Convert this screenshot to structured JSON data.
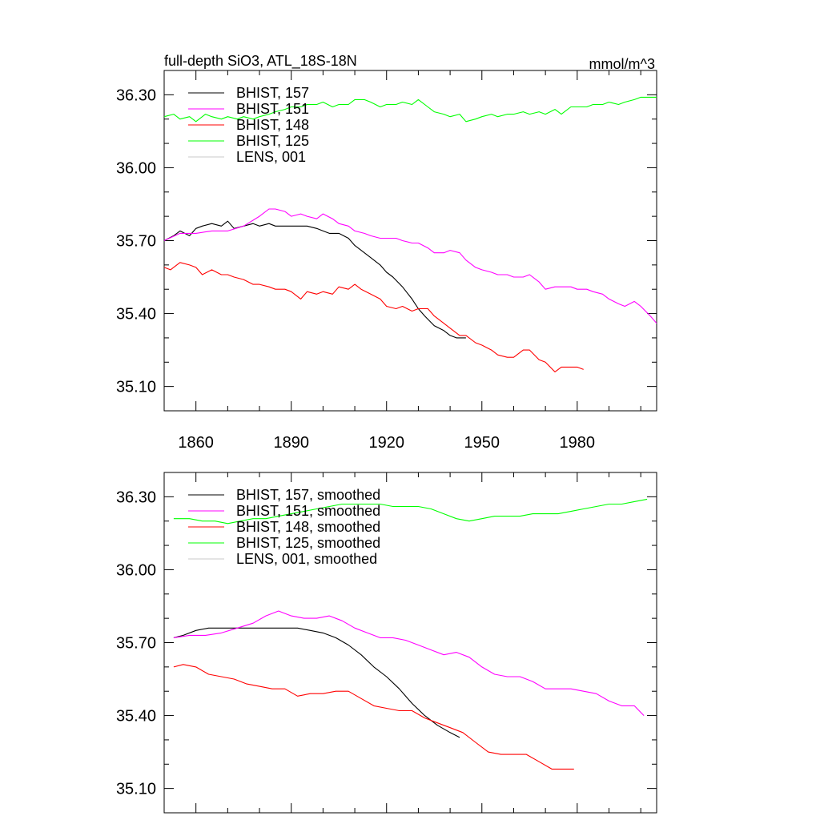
{
  "chart_data": [
    {
      "type": "line",
      "title": "full-depth SiO3, ATL_18S-18N",
      "units": "mmol/m^3",
      "xlim": [
        1850,
        2005
      ],
      "ylim": [
        35.0,
        36.4
      ],
      "x_ticks": [
        1860,
        1890,
        1920,
        1950,
        1980
      ],
      "y_ticks": [
        35.1,
        35.4,
        35.7,
        36.0,
        36.3
      ],
      "y_tick_labels": [
        "35.10",
        "35.40",
        "35.70",
        "36.00",
        "36.30"
      ],
      "x_tick_labels": [
        "1860",
        "1890",
        "1920",
        "1950",
        "1980"
      ],
      "grid": false,
      "legend_position": "top-left",
      "series": [
        {
          "name": "BHIST, 157",
          "color": "#000000",
          "x": [
            1850,
            1853,
            1855,
            1858,
            1860,
            1862,
            1865,
            1868,
            1870,
            1872,
            1875,
            1878,
            1880,
            1883,
            1885,
            1888,
            1890,
            1893,
            1895,
            1898,
            1900,
            1902,
            1905,
            1908,
            1910,
            1912,
            1915,
            1918,
            1920,
            1922,
            1925,
            1928,
            1930,
            1932,
            1935,
            1938,
            1940,
            1942,
            1945
          ],
          "y": [
            35.7,
            35.72,
            35.74,
            35.72,
            35.75,
            35.76,
            35.77,
            35.76,
            35.78,
            35.75,
            35.76,
            35.77,
            35.76,
            35.77,
            35.76,
            35.76,
            35.76,
            35.76,
            35.76,
            35.75,
            35.74,
            35.73,
            35.73,
            35.71,
            35.68,
            35.66,
            35.63,
            35.6,
            35.57,
            35.55,
            35.51,
            35.46,
            35.42,
            35.39,
            35.35,
            35.33,
            35.31,
            35.3,
            35.3
          ]
        },
        {
          "name": "BHIST, 151",
          "color": "#ff00ff",
          "x": [
            1850,
            1855,
            1860,
            1865,
            1870,
            1875,
            1880,
            1883,
            1885,
            1888,
            1890,
            1893,
            1895,
            1898,
            1900,
            1903,
            1905,
            1908,
            1910,
            1913,
            1915,
            1918,
            1920,
            1923,
            1925,
            1928,
            1930,
            1933,
            1935,
            1938,
            1940,
            1943,
            1945,
            1948,
            1950,
            1953,
            1955,
            1958,
            1960,
            1963,
            1965,
            1968,
            1970,
            1973,
            1975,
            1978,
            1980,
            1983,
            1985,
            1988,
            1990,
            1993,
            1995,
            1998,
            2000,
            2003,
            2005
          ],
          "y": [
            35.7,
            35.73,
            35.73,
            35.74,
            35.74,
            35.76,
            35.8,
            35.83,
            35.83,
            35.82,
            35.8,
            35.81,
            35.8,
            35.79,
            35.81,
            35.79,
            35.77,
            35.76,
            35.74,
            35.73,
            35.72,
            35.71,
            35.71,
            35.71,
            35.7,
            35.69,
            35.69,
            35.67,
            35.65,
            35.65,
            35.66,
            35.65,
            35.62,
            35.59,
            35.58,
            35.57,
            35.56,
            35.56,
            35.55,
            35.55,
            35.56,
            35.53,
            35.5,
            35.51,
            35.51,
            35.51,
            35.5,
            35.5,
            35.49,
            35.48,
            35.46,
            35.44,
            35.43,
            35.45,
            35.43,
            35.39,
            35.36
          ]
        },
        {
          "name": "BHIST, 148",
          "color": "#ff0000",
          "x": [
            1850,
            1852,
            1855,
            1858,
            1860,
            1862,
            1865,
            1868,
            1870,
            1872,
            1875,
            1878,
            1880,
            1883,
            1885,
            1888,
            1890,
            1893,
            1895,
            1898,
            1900,
            1903,
            1905,
            1908,
            1910,
            1912,
            1915,
            1918,
            1920,
            1923,
            1925,
            1928,
            1930,
            1933,
            1935,
            1938,
            1940,
            1943,
            1945,
            1948,
            1950,
            1953,
            1955,
            1958,
            1960,
            1963,
            1965,
            1968,
            1970,
            1973,
            1975,
            1978,
            1980,
            1982
          ],
          "y": [
            35.59,
            35.58,
            35.61,
            35.6,
            35.59,
            35.56,
            35.58,
            35.56,
            35.56,
            35.55,
            35.54,
            35.52,
            35.52,
            35.51,
            35.5,
            35.5,
            35.49,
            35.46,
            35.49,
            35.48,
            35.49,
            35.48,
            35.51,
            35.5,
            35.52,
            35.5,
            35.48,
            35.46,
            35.43,
            35.42,
            35.43,
            35.41,
            35.42,
            35.42,
            35.39,
            35.36,
            35.34,
            35.31,
            35.31,
            35.28,
            35.27,
            35.25,
            35.23,
            35.22,
            35.22,
            35.25,
            35.25,
            35.21,
            35.2,
            35.16,
            35.18,
            35.18,
            35.18,
            35.17
          ]
        },
        {
          "name": "BHIST, 125",
          "color": "#00ff00",
          "x": [
            1850,
            1853,
            1855,
            1858,
            1860,
            1863,
            1865,
            1868,
            1870,
            1873,
            1875,
            1878,
            1880,
            1883,
            1885,
            1888,
            1890,
            1893,
            1895,
            1898,
            1900,
            1903,
            1905,
            1908,
            1910,
            1913,
            1915,
            1918,
            1920,
            1923,
            1925,
            1928,
            1930,
            1933,
            1935,
            1938,
            1940,
            1943,
            1945,
            1948,
            1950,
            1953,
            1955,
            1958,
            1960,
            1963,
            1965,
            1968,
            1970,
            1973,
            1975,
            1978,
            1980,
            1983,
            1985,
            1988,
            1990,
            1993,
            1995,
            1998,
            2000,
            2003,
            2005
          ],
          "y": [
            36.21,
            36.22,
            36.2,
            36.21,
            36.19,
            36.22,
            36.21,
            36.2,
            36.21,
            36.2,
            36.21,
            36.2,
            36.21,
            36.22,
            36.23,
            36.24,
            36.25,
            36.25,
            36.26,
            36.26,
            36.27,
            36.25,
            36.26,
            36.26,
            36.28,
            36.28,
            36.27,
            36.25,
            36.26,
            36.26,
            36.27,
            36.26,
            36.28,
            36.25,
            36.23,
            36.22,
            36.21,
            36.22,
            36.19,
            36.2,
            36.21,
            36.22,
            36.21,
            36.22,
            36.22,
            36.23,
            36.22,
            36.23,
            36.22,
            36.24,
            36.22,
            36.25,
            36.25,
            36.25,
            36.26,
            36.26,
            36.27,
            36.26,
            36.27,
            36.28,
            36.29,
            36.29,
            36.29
          ]
        },
        {
          "name": "LENS, 001",
          "color": "#c8c8c8",
          "x": [],
          "y": []
        }
      ]
    },
    {
      "type": "line",
      "xlim": [
        1850,
        2005
      ],
      "ylim": [
        35.0,
        36.4
      ],
      "y_ticks": [
        35.1,
        35.4,
        35.7,
        36.0,
        36.3
      ],
      "y_tick_labels": [
        "35.10",
        "35.40",
        "35.70",
        "36.00",
        "36.30"
      ],
      "x_ticks": [
        1860,
        1890,
        1920,
        1950,
        1980
      ],
      "grid": false,
      "legend_position": "top-left",
      "series": [
        {
          "name": "BHIST, 157, smoothed",
          "color": "#000000",
          "x": [
            1853,
            1856,
            1860,
            1864,
            1868,
            1872,
            1876,
            1880,
            1884,
            1888,
            1892,
            1896,
            1900,
            1904,
            1908,
            1912,
            1916,
            1920,
            1924,
            1928,
            1932,
            1936,
            1940,
            1943
          ],
          "y": [
            35.72,
            35.73,
            35.75,
            35.76,
            35.76,
            35.76,
            35.76,
            35.76,
            35.76,
            35.76,
            35.76,
            35.75,
            35.74,
            35.72,
            35.69,
            35.65,
            35.6,
            35.56,
            35.51,
            35.45,
            35.4,
            35.36,
            35.33,
            35.31
          ]
        },
        {
          "name": "BHIST, 151, smoothed",
          "color": "#ff00ff",
          "x": [
            1853,
            1858,
            1863,
            1868,
            1873,
            1878,
            1882,
            1886,
            1890,
            1894,
            1898,
            1902,
            1906,
            1910,
            1914,
            1918,
            1922,
            1926,
            1930,
            1934,
            1938,
            1942,
            1946,
            1950,
            1954,
            1958,
            1962,
            1966,
            1970,
            1974,
            1978,
            1982,
            1986,
            1990,
            1994,
            1998,
            2001
          ],
          "y": [
            35.72,
            35.73,
            35.73,
            35.74,
            35.76,
            35.78,
            35.81,
            35.83,
            35.81,
            35.8,
            35.8,
            35.81,
            35.79,
            35.76,
            35.74,
            35.72,
            35.72,
            35.71,
            35.69,
            35.67,
            35.65,
            35.66,
            35.64,
            35.6,
            35.57,
            35.56,
            35.56,
            35.54,
            35.51,
            35.51,
            35.51,
            35.5,
            35.49,
            35.46,
            35.44,
            35.44,
            35.4
          ]
        },
        {
          "name": "BHIST, 148, smoothed",
          "color": "#ff0000",
          "x": [
            1853,
            1856,
            1860,
            1864,
            1868,
            1872,
            1876,
            1880,
            1884,
            1888,
            1892,
            1896,
            1900,
            1904,
            1908,
            1912,
            1916,
            1920,
            1924,
            1928,
            1932,
            1936,
            1940,
            1944,
            1948,
            1952,
            1956,
            1960,
            1964,
            1968,
            1972,
            1976,
            1979
          ],
          "y": [
            35.6,
            35.61,
            35.6,
            35.57,
            35.56,
            35.55,
            35.53,
            35.52,
            35.51,
            35.51,
            35.48,
            35.49,
            35.49,
            35.5,
            35.5,
            35.47,
            35.44,
            35.43,
            35.42,
            35.42,
            35.39,
            35.37,
            35.35,
            35.33,
            35.29,
            35.25,
            35.24,
            35.24,
            35.24,
            35.21,
            35.18,
            35.18,
            35.18
          ]
        },
        {
          "name": "BHIST, 125, smoothed",
          "color": "#00ff00",
          "x": [
            1853,
            1858,
            1862,
            1866,
            1870,
            1874,
            1878,
            1882,
            1886,
            1890,
            1894,
            1898,
            1902,
            1906,
            1910,
            1914,
            1918,
            1922,
            1926,
            1930,
            1934,
            1938,
            1942,
            1946,
            1950,
            1954,
            1958,
            1962,
            1966,
            1970,
            1974,
            1978,
            1982,
            1986,
            1990,
            1994,
            1998,
            2002
          ],
          "y": [
            36.21,
            36.21,
            36.2,
            36.2,
            36.19,
            36.2,
            36.21,
            36.21,
            36.22,
            36.23,
            36.24,
            36.25,
            36.26,
            36.27,
            36.27,
            36.27,
            36.27,
            36.26,
            36.26,
            36.26,
            36.25,
            36.23,
            36.21,
            36.2,
            36.21,
            36.22,
            36.22,
            36.22,
            36.23,
            36.23,
            36.23,
            36.24,
            36.25,
            36.26,
            36.27,
            36.27,
            36.28,
            36.29
          ]
        },
        {
          "name": "LENS, 001, smoothed",
          "color": "#c8c8c8",
          "x": [],
          "y": []
        }
      ]
    }
  ]
}
